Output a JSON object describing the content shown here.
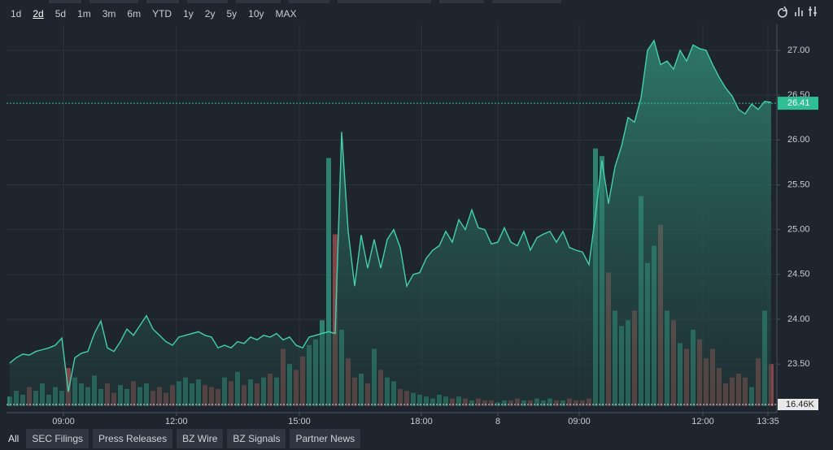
{
  "toolbar": {
    "ranges": [
      "1d",
      "2d",
      "5d",
      "1m",
      "3m",
      "6m",
      "YTD",
      "1y",
      "2y",
      "5y",
      "10y",
      "MAX"
    ],
    "selected_index": 1
  },
  "tabs": [
    "All",
    "SEC Filings",
    "Press Releases",
    "BZ Wire",
    "BZ Signals",
    "Partner News"
  ],
  "chart_data": {
    "type": "line",
    "xlim": [
      0,
      117
    ],
    "xticks": [
      {
        "value": 8.25,
        "label": "09:00"
      },
      {
        "value": 25.6,
        "label": "12:00"
      },
      {
        "value": 44.5,
        "label": "15:00"
      },
      {
        "value": 63.25,
        "label": "18:00"
      },
      {
        "value": 75,
        "label": "8"
      },
      {
        "value": 87.5,
        "label": "09:00"
      },
      {
        "value": 106.5,
        "label": "12:00"
      },
      {
        "value": 116.5,
        "label": "13:35"
      }
    ],
    "ylim": [
      23.03,
      27.29
    ],
    "yticks": [
      {
        "value": 23.5,
        "label": "23.50"
      },
      {
        "value": 24,
        "label": "24.00"
      },
      {
        "value": 24.5,
        "label": "24.50"
      },
      {
        "value": 25,
        "label": "25.00"
      },
      {
        "value": 25.5,
        "label": "25.50"
      },
      {
        "value": 26,
        "label": "26.00"
      },
      {
        "value": 26.5,
        "label": "26.50"
      },
      {
        "value": 27,
        "label": "27.00"
      }
    ],
    "grid": true,
    "series": [
      {
        "color": "#43d1aa",
        "values": [
          23.51,
          23.57,
          23.61,
          23.6,
          23.64,
          23.66,
          23.68,
          23.71,
          23.79,
          23.19,
          23.57,
          23.62,
          23.64,
          23.84,
          23.98,
          23.68,
          23.64,
          23.75,
          23.89,
          23.82,
          23.93,
          24.04,
          23.89,
          23.82,
          23.75,
          23.71,
          23.8,
          23.82,
          23.84,
          23.86,
          23.82,
          23.8,
          23.68,
          23.71,
          23.68,
          23.75,
          23.73,
          23.8,
          23.77,
          23.82,
          23.8,
          23.84,
          23.77,
          23.8,
          23.71,
          23.68,
          23.8,
          23.82,
          23.84,
          23.86,
          23.84,
          26.09,
          24.98,
          24.37,
          24.94,
          24.57,
          24.89,
          24.57,
          24.89,
          25.0,
          24.8,
          24.37,
          24.5,
          24.52,
          24.68,
          24.77,
          24.82,
          24.98,
          24.86,
          25.11,
          25.0,
          25.22,
          25.02,
          25.0,
          24.84,
          24.86,
          25.02,
          24.86,
          24.82,
          24.98,
          24.77,
          24.91,
          24.95,
          24.98,
          24.86,
          24.98,
          24.8,
          24.77,
          24.75,
          24.61,
          25.16,
          25.77,
          25.29,
          25.7,
          25.93,
          26.25,
          26.2,
          26.47,
          27.0,
          27.11,
          26.84,
          26.88,
          26.79,
          27.0,
          26.88,
          27.06,
          27.02,
          27.0,
          26.84,
          26.7,
          26.58,
          26.49,
          26.34,
          26.29,
          26.4,
          26.34,
          26.43,
          26.42
        ]
      },
      {
        "axis": "y2",
        "up_color": "#2f8c79",
        "down_color": "#8c4a4a",
        "values": [
          10,
          16,
          12,
          20,
          16,
          24,
          12,
          20,
          16,
          40,
          30,
          24,
          20,
          32,
          18,
          24,
          14,
          22,
          18,
          26,
          20,
          24,
          16,
          20,
          14,
          22,
          26,
          30,
          24,
          28,
          22,
          20,
          18,
          30,
          26,
          36,
          22,
          28,
          24,
          30,
          34,
          30,
          60,
          44,
          38,
          52,
          64,
          70,
          90,
          260,
          180,
          80,
          50,
          30,
          34,
          24,
          60,
          38,
          30,
          26,
          18,
          16,
          14,
          12,
          10,
          8,
          12,
          10,
          8,
          10,
          8,
          6,
          8,
          6,
          6,
          4,
          6,
          6,
          8,
          6,
          6,
          8,
          6,
          8,
          6,
          6,
          8,
          6,
          6,
          8,
          270,
          262,
          140,
          100,
          84,
          90,
          100,
          220,
          150,
          168,
          190,
          100,
          90,
          66,
          60,
          80,
          70,
          50,
          60,
          40,
          24,
          30,
          34,
          30,
          20,
          50,
          100,
          44
        ]
      }
    ],
    "y2lim": [
      0,
      400
    ],
    "last_price": 26.41,
    "last_price_color": "#2fbf95",
    "volume_label": "16.46K"
  }
}
